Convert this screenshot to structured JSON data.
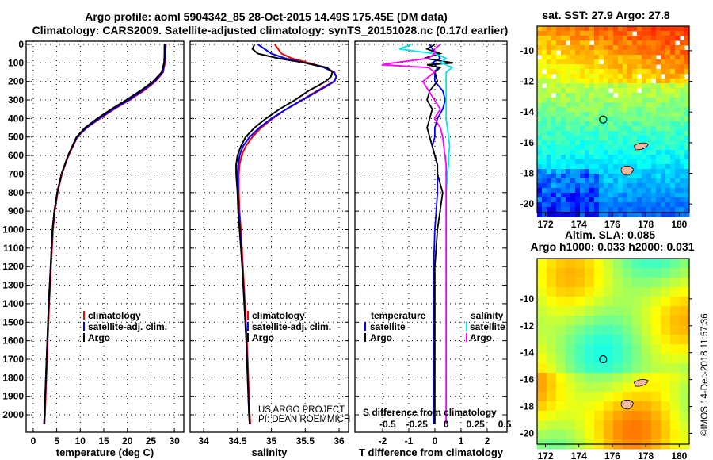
{
  "title_line1": "Argo profile: aoml 5904342_85 28-Oct-2015 14.49S 175.45E (DM data)",
  "title_line2": "Climatology: CARS2009. Satellite-adjusted climatology: synTS_20151028.nc (0.17d earlier)",
  "credit_vertical": "©IMOS 14-Dec-2018 11:57:36",
  "project": [
    "US ARGO PROJECT",
    "PI: DEAN ROEMMICH"
  ],
  "colors": {
    "climatology": "#ff0000",
    "satellite": "#0000ff",
    "argo": "#000000",
    "sal_satellite": "#00e5ee",
    "sal_argo": "#ff00ff"
  },
  "chart_data": [
    {
      "type": "line",
      "name": "temperature",
      "xlabel": "temperature (deg C)",
      "ylabel": "depth",
      "xlim": [
        -1.5,
        32
      ],
      "ylim": [
        2094,
        -17
      ],
      "xticks": [
        0,
        5,
        10,
        15,
        20,
        25,
        30
      ],
      "yticks": [
        0,
        100,
        200,
        300,
        400,
        500,
        600,
        700,
        800,
        900,
        1000,
        1100,
        1200,
        1300,
        1400,
        1500,
        1600,
        1700,
        1800,
        1900,
        2000
      ],
      "legend": [
        "climatology",
        "satellite-adj. clim.",
        "Argo"
      ],
      "depth": [
        0,
        50,
        100,
        150,
        200,
        250,
        300,
        350,
        400,
        450,
        500,
        600,
        700,
        800,
        900,
        1000,
        1200,
        1400,
        1600,
        1800,
        2000,
        2050
      ],
      "series": [
        {
          "name": "climatology",
          "values": [
            28.2,
            28.1,
            28.0,
            27.6,
            26.0,
            23.5,
            20.5,
            17.2,
            14.2,
            11.4,
            9.4,
            7.5,
            6.1,
            5.2,
            4.6,
            4.2,
            3.8,
            3.4,
            3.1,
            2.8,
            2.5,
            2.4
          ]
        },
        {
          "name": "satellite-adj. clim.",
          "values": [
            28.0,
            28.0,
            27.9,
            27.5,
            25.8,
            23.2,
            20.3,
            17.0,
            14.0,
            11.3,
            9.3,
            7.4,
            6.0,
            5.1,
            4.5,
            4.1,
            3.7,
            3.3,
            3.0,
            2.7,
            2.4,
            2.3
          ]
        },
        {
          "name": "Argo",
          "values": [
            27.9,
            27.9,
            27.8,
            27.3,
            25.5,
            22.8,
            19.8,
            16.6,
            13.6,
            11.0,
            9.2,
            7.4,
            6.0,
            5.1,
            4.5,
            4.1,
            3.7,
            3.3,
            3.0,
            2.7,
            2.4,
            2.3
          ]
        }
      ]
    },
    {
      "type": "line",
      "name": "salinity",
      "xlabel": "salinity",
      "xlim": [
        33.8,
        36.14
      ],
      "ylim": [
        2094,
        -17
      ],
      "xticks": [
        34,
        34.5,
        35,
        35.5,
        36
      ],
      "legend": [
        "climatology",
        "satellite-adj. clim.",
        "Argo"
      ],
      "depth": [
        0,
        25,
        50,
        75,
        100,
        125,
        150,
        175,
        200,
        225,
        250,
        300,
        350,
        400,
        450,
        500,
        550,
        600,
        650,
        700,
        800,
        900,
        1000,
        1200,
        1400,
        1600,
        1800,
        2000,
        2050
      ],
      "series": [
        {
          "name": "climatology",
          "values": [
            35.05,
            35.1,
            35.15,
            35.3,
            35.55,
            35.8,
            35.93,
            35.96,
            35.92,
            35.8,
            35.68,
            35.45,
            35.22,
            35.02,
            34.85,
            34.72,
            34.62,
            34.56,
            34.53,
            34.52,
            34.52,
            34.53,
            34.55,
            34.58,
            34.61,
            34.64,
            34.66,
            34.68,
            34.69
          ]
        },
        {
          "name": "satellite-adj. clim.",
          "values": [
            34.8,
            34.9,
            35.0,
            35.2,
            35.5,
            35.78,
            35.92,
            35.96,
            35.93,
            35.82,
            35.7,
            35.46,
            35.22,
            35.0,
            34.82,
            34.68,
            34.58,
            34.53,
            34.51,
            34.5,
            34.51,
            34.52,
            34.54,
            34.57,
            34.6,
            34.63,
            34.65,
            34.67,
            34.68
          ]
        },
        {
          "name": "Argo",
          "values": [
            34.75,
            34.72,
            34.8,
            35.1,
            35.5,
            35.82,
            35.9,
            35.88,
            35.8,
            35.68,
            35.55,
            35.35,
            35.12,
            34.92,
            34.75,
            34.62,
            34.55,
            34.5,
            34.48,
            34.48,
            34.5,
            34.51,
            34.53,
            34.57,
            34.6,
            34.63,
            34.65,
            34.67,
            34.68
          ]
        }
      ]
    },
    {
      "type": "line",
      "name": "difference",
      "xlabel": "T difference from climatology",
      "x2label": "S difference from climatology",
      "xlim": [
        -3.06,
        2.76
      ],
      "x2lim": [
        -0.78,
        0.52
      ],
      "ylim": [
        2094,
        -17
      ],
      "xticks": [
        -2,
        -1,
        0,
        1,
        2
      ],
      "x2ticks": [
        -0.5,
        -0.25,
        0,
        0.25,
        0.5
      ],
      "legend_temperature_title": "temperature",
      "legend_salinity_title": "salinity",
      "legend_items": [
        "satellite",
        "Argo"
      ],
      "depth": [
        0,
        25,
        50,
        75,
        100,
        110,
        125,
        150,
        200,
        250,
        300,
        350,
        400,
        450,
        500,
        550,
        600,
        650,
        700,
        800,
        900,
        1000,
        1200,
        1500,
        2000,
        2050
      ],
      "series": [
        {
          "name": "T satellite",
          "axis": "T",
          "values": [
            -0.2,
            -0.1,
            0.1,
            0.2,
            -0.1,
            0.0,
            0.1,
            0.0,
            0.0,
            0.3,
            0.4,
            0.3,
            0.1,
            0.0,
            0.0,
            -0.1,
            0.0,
            0.1,
            0.1,
            0.1,
            0.05,
            0.0,
            -0.05,
            -0.05,
            -0.05,
            -0.05
          ]
        },
        {
          "name": "T Argo",
          "axis": "T",
          "values": [
            0.0,
            -0.3,
            0.2,
            -0.4,
            0.7,
            -0.3,
            0.2,
            0.0,
            0.1,
            -0.2,
            -0.3,
            -0.1,
            -0.2,
            -0.3,
            -0.2,
            -0.1,
            0.0,
            0.1,
            0.1,
            0.3,
            0.2,
            0.1,
            0.0,
            0.0,
            0.0,
            0.0
          ]
        },
        {
          "name": "S satellite",
          "axis": "S",
          "values": [
            -0.3,
            -0.4,
            -0.1,
            0.0,
            -0.05,
            0.0,
            0.05,
            0.0,
            0.0,
            0.0,
            0.0,
            0.0,
            0.0,
            0.01,
            0.02,
            0.03,
            0.02,
            0.02,
            0.01,
            0.0,
            0.0,
            0.0,
            0.0,
            0.0,
            0.0,
            0.0
          ]
        },
        {
          "name": "S Argo",
          "axis": "S",
          "values": [
            -0.05,
            -0.1,
            -0.1,
            -0.15,
            -0.45,
            -0.55,
            -0.15,
            -0.1,
            -0.2,
            -0.15,
            -0.1,
            -0.05,
            -0.1,
            -0.05,
            -0.03,
            -0.02,
            -0.01,
            0.0,
            0.0,
            0.0,
            0.0,
            0.0,
            0.0,
            0.0,
            0.0,
            0.0
          ]
        }
      ]
    },
    {
      "type": "heatmap",
      "name": "sst-map",
      "title": "sat. SST: 27.9 Argo: 27.8",
      "lon": [
        171.5,
        180.6
      ],
      "lat": [
        -20.56,
        -8.4
      ],
      "xticks": [
        172,
        174,
        176,
        178,
        180
      ],
      "yticks": [
        -10,
        -12,
        -14,
        -16,
        -18,
        -20
      ],
      "argo_position": [
        175.45,
        -14.49
      ]
    },
    {
      "type": "heatmap",
      "name": "sla-map",
      "title": "Altim. SLA: 0.085",
      "subtitle": "Argo h1000: 0.033 h2000: 0.031",
      "lon": [
        171.5,
        180.6
      ],
      "lat": [
        -20.8,
        -7.0
      ],
      "xticks": [
        172,
        174,
        176,
        178,
        180
      ],
      "yticks": [
        -10,
        -12,
        -14,
        -16,
        -18,
        -20
      ],
      "argo_position": [
        175.45,
        -14.49
      ]
    }
  ]
}
